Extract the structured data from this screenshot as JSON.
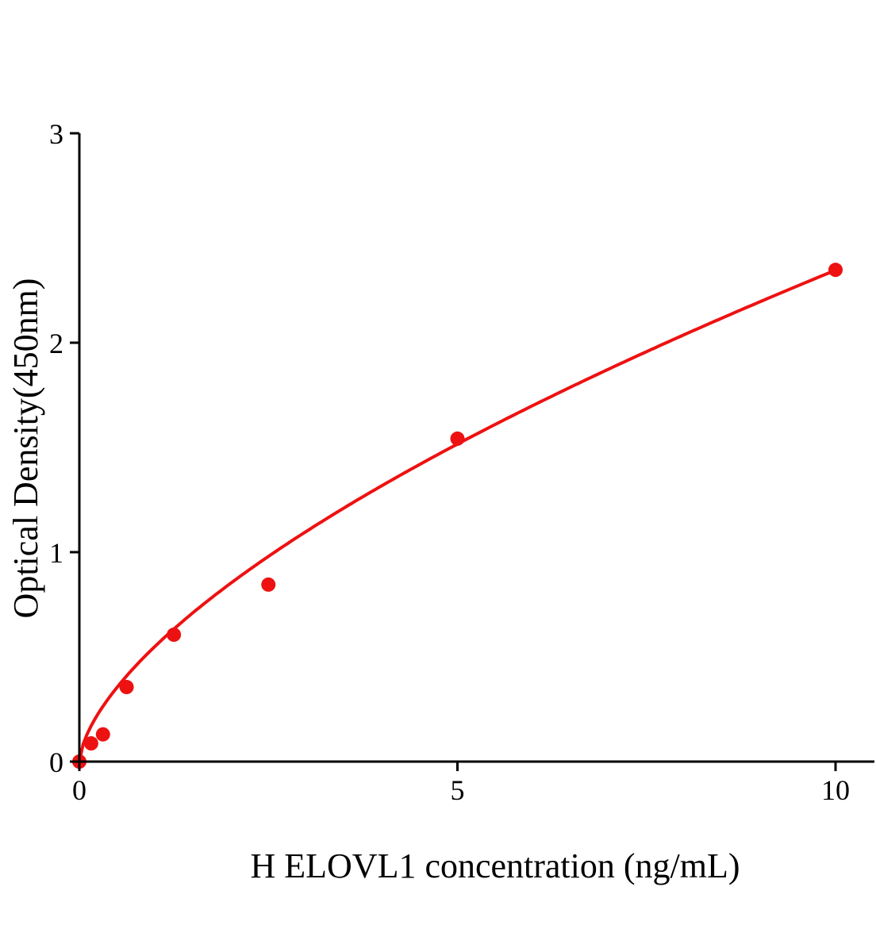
{
  "chart_data": {
    "type": "scatter",
    "title": "",
    "xlabel": "H ELOVL1 concentration (ng/mL)",
    "ylabel": "Optical Density(450nm)",
    "xlim": [
      0,
      10.5
    ],
    "ylim": [
      0,
      3
    ],
    "xticks": [
      "0",
      "5",
      "10"
    ],
    "yticks": [
      "0",
      "1",
      "2",
      "3"
    ],
    "grid": false,
    "legend": "none",
    "color": "#ee1111",
    "series": [
      {
        "x": [
          0,
          0.156,
          0.3125,
          0.625,
          1.25,
          2.5,
          5,
          10
        ],
        "y": [
          0.0,
          0.087,
          0.13,
          0.356,
          0.606,
          0.845,
          1.542,
          2.348
        ]
      }
    ],
    "fit_curve": true
  }
}
